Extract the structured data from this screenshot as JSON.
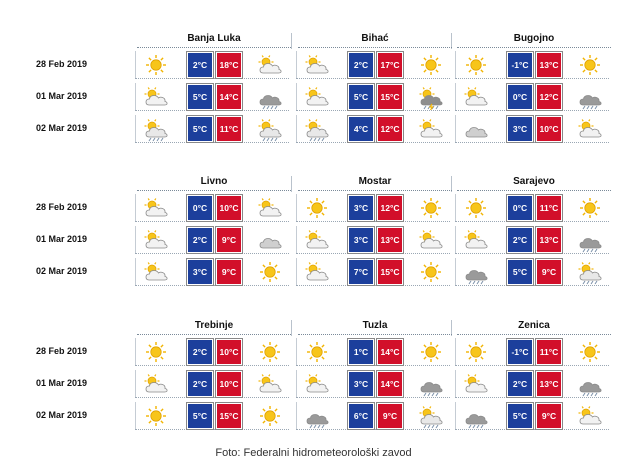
{
  "caption": "Foto: Federalni hidrometeorološki zavod",
  "groups": [
    {
      "dates": [
        "28 Feb 2019",
        "01 Mar 2019",
        "02 Mar 2019"
      ],
      "cities": [
        {
          "name": "Banja Luka",
          "days": [
            {
              "am": "sun-icon",
              "min": "2°C",
              "max": "18°C",
              "pm": "sun-cloud-icon"
            },
            {
              "am": "sun-cloud-icon",
              "min": "5°C",
              "max": "14°C",
              "pm": "cloud-rain-icon"
            },
            {
              "am": "sun-rain-icon",
              "min": "5°C",
              "max": "11°C",
              "pm": "sun-rain-icon"
            }
          ]
        },
        {
          "name": "Bihać",
          "days": [
            {
              "am": "sun-cloud-icon",
              "min": "2°C",
              "max": "17°C",
              "pm": "sun-icon"
            },
            {
              "am": "sun-cloud-icon",
              "min": "5°C",
              "max": "15°C",
              "pm": "cloud-storm-icon"
            },
            {
              "am": "sun-rain-icon",
              "min": "4°C",
              "max": "12°C",
              "pm": "sun-cloud-icon"
            }
          ]
        },
        {
          "name": "Bugojno",
          "days": [
            {
              "am": "sun-icon",
              "min": "-1°C",
              "max": "13°C",
              "pm": "sun-icon"
            },
            {
              "am": "sun-cloud-icon",
              "min": "0°C",
              "max": "12°C",
              "pm": "cloud-rain-icon"
            },
            {
              "am": "cloud-icon",
              "min": "3°C",
              "max": "10°C",
              "pm": "sun-cloud-icon"
            }
          ]
        }
      ]
    },
    {
      "dates": [
        "28 Feb 2019",
        "01 Mar 2019",
        "02 Mar 2019"
      ],
      "cities": [
        {
          "name": "Livno",
          "days": [
            {
              "am": "sun-cloud-icon",
              "min": "0°C",
              "max": "10°C",
              "pm": "sun-cloud-icon"
            },
            {
              "am": "sun-cloud-icon",
              "min": "2°C",
              "max": "9°C",
              "pm": "cloud-icon"
            },
            {
              "am": "sun-cloud-icon",
              "min": "3°C",
              "max": "9°C",
              "pm": "sun-icon"
            }
          ]
        },
        {
          "name": "Mostar",
          "days": [
            {
              "am": "sun-icon",
              "min": "3°C",
              "max": "12°C",
              "pm": "sun-icon"
            },
            {
              "am": "sun-cloud-icon",
              "min": "3°C",
              "max": "13°C",
              "pm": "sun-cloud-icon"
            },
            {
              "am": "sun-cloud-icon",
              "min": "7°C",
              "max": "15°C",
              "pm": "sun-icon"
            }
          ]
        },
        {
          "name": "Sarajevo",
          "days": [
            {
              "am": "sun-icon",
              "min": "0°C",
              "max": "11°C",
              "pm": "sun-icon"
            },
            {
              "am": "sun-cloud-icon",
              "min": "2°C",
              "max": "13°C",
              "pm": "cloud-rain-icon"
            },
            {
              "am": "cloud-rain-icon",
              "min": "5°C",
              "max": "9°C",
              "pm": "sun-rain-icon"
            }
          ]
        }
      ]
    },
    {
      "dates": [
        "28 Feb 2019",
        "01 Mar 2019",
        "02 Mar 2019"
      ],
      "cities": [
        {
          "name": "Trebinje",
          "days": [
            {
              "am": "sun-icon",
              "min": "2°C",
              "max": "10°C",
              "pm": "sun-icon"
            },
            {
              "am": "sun-cloud-icon",
              "min": "2°C",
              "max": "10°C",
              "pm": "sun-cloud-icon"
            },
            {
              "am": "sun-icon",
              "min": "5°C",
              "max": "15°C",
              "pm": "sun-icon"
            }
          ]
        },
        {
          "name": "Tuzla",
          "days": [
            {
              "am": "sun-icon",
              "min": "1°C",
              "max": "14°C",
              "pm": "sun-icon"
            },
            {
              "am": "sun-cloud-icon",
              "min": "3°C",
              "max": "14°C",
              "pm": "cloud-rain-icon"
            },
            {
              "am": "cloud-rain-icon",
              "min": "6°C",
              "max": "9°C",
              "pm": "sun-rain-icon"
            }
          ]
        },
        {
          "name": "Zenica",
          "days": [
            {
              "am": "sun-icon",
              "min": "-1°C",
              "max": "11°C",
              "pm": "sun-icon"
            },
            {
              "am": "sun-cloud-icon",
              "min": "2°C",
              "max": "13°C",
              "pm": "cloud-rain-icon"
            },
            {
              "am": "cloud-rain-icon",
              "min": "5°C",
              "max": "9°C",
              "pm": "sun-cloud-icon"
            }
          ]
        }
      ]
    }
  ]
}
